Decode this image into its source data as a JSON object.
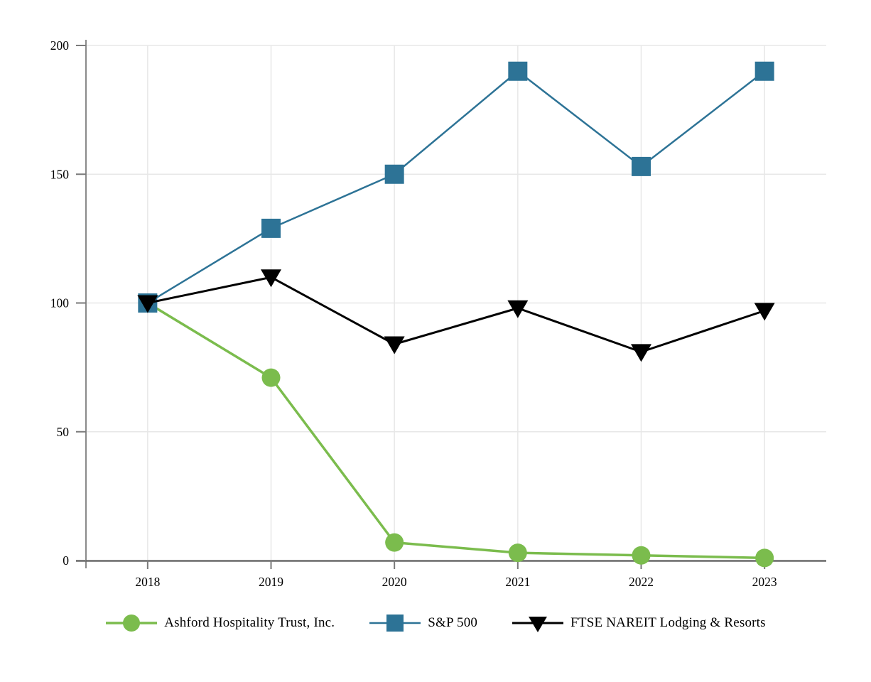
{
  "page": {
    "background": "#ffffff"
  },
  "chart_data": {
    "type": "line",
    "title": "",
    "xlabel": "",
    "ylabel": "",
    "categories": [
      "2018",
      "2019",
      "2020",
      "2021",
      "2022",
      "2023"
    ],
    "series": [
      {
        "name": "Ashford Hospitality Trust, Inc.",
        "marker": "circle",
        "color": "#7bbc4d",
        "line_width": 3.5,
        "values": [
          100,
          71,
          7,
          3,
          2,
          1
        ]
      },
      {
        "name": "S&P 500",
        "marker": "square",
        "color": "#2d7396",
        "line_width": 2.5,
        "values": [
          100,
          129,
          150,
          190,
          153,
          190
        ]
      },
      {
        "name": "FTSE NAREIT Lodging & Resorts",
        "marker": "triangle-down",
        "color": "#000000",
        "line_width": 3,
        "values": [
          100,
          110,
          84,
          98,
          81,
          97
        ]
      }
    ],
    "ylim": [
      0,
      200
    ],
    "yticks": [
      0,
      50,
      100,
      150,
      200
    ],
    "grid": true,
    "legend_position": "bottom",
    "colors": {
      "grid": "#e7e7e7",
      "y_axis": "#8a8a8a",
      "x_axis": "#686868",
      "tick": "#7a7a7a",
      "text": "#000000"
    }
  }
}
